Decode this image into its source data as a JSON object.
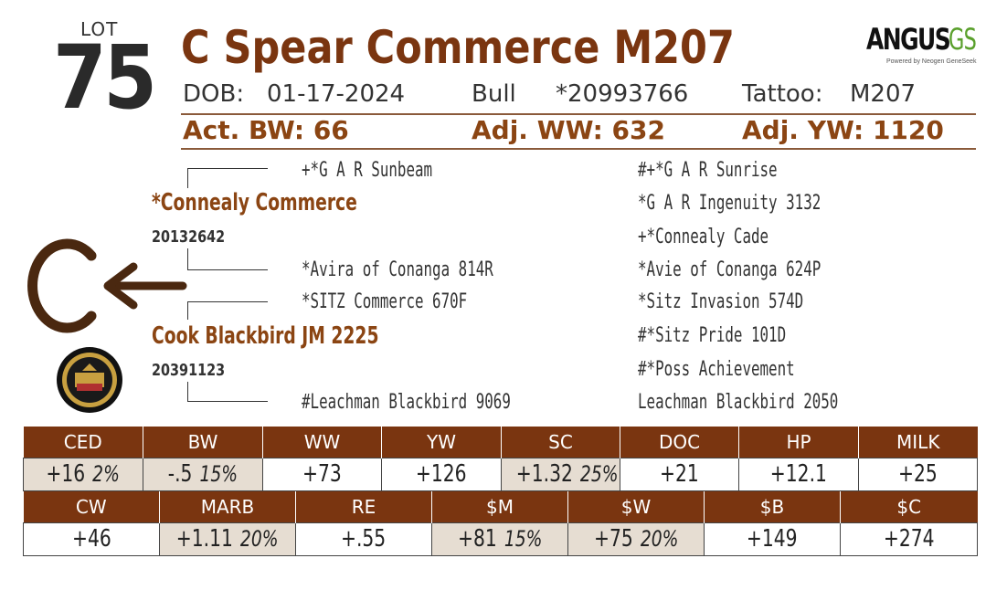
{
  "lot": {
    "label": "LOT",
    "number": "75"
  },
  "title": "C Spear Commerce M207",
  "logo": {
    "angus": "ANGUS",
    "gs": "GS",
    "tagline": "Powered by Neogen GeneSeek"
  },
  "info": {
    "dob_label": "DOB:",
    "dob_value": "01-17-2024",
    "sex": "Bull",
    "reg": "*20993766",
    "tattoo_label": "Tattoo:",
    "tattoo_value": "M207"
  },
  "stats": {
    "bw": "Act. BW: 66",
    "ww": "Adj. WW: 632",
    "yw": "Adj. YW: 1120"
  },
  "pedigree": {
    "sire": {
      "name": "*Connealy Commerce",
      "reg": "20132642"
    },
    "dam": {
      "name": "Cook Blackbird JM 2225",
      "reg": "20391123"
    },
    "sire_sire": "+*G A R Sunbeam",
    "sire_dam": "*Avira of Conanga 814R",
    "dam_sire": "*SITZ Commerce 670F",
    "dam_dam": "#Leachman Blackbird 9069",
    "great": [
      "#+*G A R Sunrise",
      "*G A R Ingenuity 3132",
      "+*Connealy Cade",
      "*Avie of Conanga 624P",
      "*Sitz Invasion 574D",
      "#*Sitz Pride 101D",
      "#*Poss Achievement",
      "Leachman Blackbird 2050"
    ]
  },
  "epd_row1": [
    {
      "label": "CED",
      "value": "+16",
      "pct": "2%",
      "shaded": true
    },
    {
      "label": "BW",
      "value": "-.5",
      "pct": "15%",
      "shaded": true
    },
    {
      "label": "WW",
      "value": "+73",
      "pct": "",
      "shaded": false
    },
    {
      "label": "YW",
      "value": "+126",
      "pct": "",
      "shaded": false
    },
    {
      "label": "SC",
      "value": "+1.32",
      "pct": "25%",
      "shaded": true
    },
    {
      "label": "DOC",
      "value": "+21",
      "pct": "",
      "shaded": false
    },
    {
      "label": "HP",
      "value": "+12.1",
      "pct": "",
      "shaded": false
    },
    {
      "label": "MILK",
      "value": "+25",
      "pct": "",
      "shaded": false
    }
  ],
  "epd_row2": [
    {
      "label": "CW",
      "value": "+46",
      "pct": "",
      "shaded": false
    },
    {
      "label": "MARB",
      "value": "+1.11",
      "pct": "20%",
      "shaded": true
    },
    {
      "label": "RE",
      "value": "+.55",
      "pct": "",
      "shaded": false
    },
    {
      "label": "$M",
      "value": "+81",
      "pct": "15%",
      "shaded": true
    },
    {
      "label": "$W",
      "value": "+75",
      "pct": "20%",
      "shaded": true
    },
    {
      "label": "$B",
      "value": "+149",
      "pct": "",
      "shaded": false
    },
    {
      "label": "$C",
      "value": "+274",
      "pct": "",
      "shaded": false
    }
  ]
}
